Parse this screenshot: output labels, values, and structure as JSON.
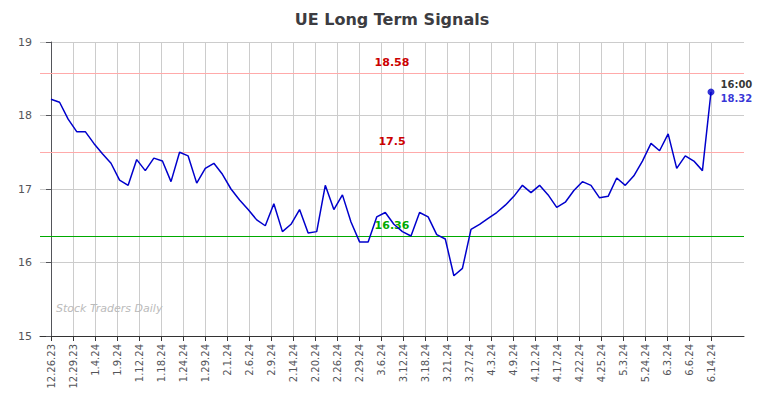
{
  "chart_data": {
    "type": "line",
    "title": "UE Long Term Signals",
    "x": [
      0,
      0.38961,
      0.779221,
      1.168831,
      1.558442,
      1.948052,
      2.337662,
      2.727273,
      3.116883,
      3.506494,
      3.896104,
      4.285714,
      4.675325,
      5.064935,
      5.454545,
      5.844156,
      6.233766,
      6.623377,
      7.012987,
      7.402597,
      7.792208,
      8.181818,
      8.571429,
      8.961039,
      9.350649,
      9.74026,
      10.12987,
      10.519481,
      10.909091,
      11.298701,
      11.688312,
      12.077922,
      12.467532,
      12.857143,
      13.246753,
      13.636364,
      14.025974,
      14.415584,
      14.805195,
      15.194805,
      15.584416,
      15.974026,
      16.363636,
      16.753247,
      17.142857,
      17.532468,
      17.922078,
      18.311688,
      18.701299,
      19.090909,
      19.480519,
      19.87013,
      20.25974,
      20.649351,
      21.038961,
      21.428571,
      21.818182,
      22.207792,
      22.597403,
      22.987013,
      23.376623,
      23.766234,
      24.155844,
      24.545455,
      24.935065,
      25.324675,
      25.714286,
      26.103896,
      26.493506,
      26.883117,
      27.272727,
      27.662338,
      28.051948,
      28.441558,
      28.831169,
      29.220779,
      29.61039,
      30
    ],
    "values": [
      18.22,
      18.18,
      17.95,
      17.78,
      17.78,
      17.62,
      17.48,
      17.35,
      17.12,
      17.05,
      17.4,
      17.25,
      17.42,
      17.38,
      17.1,
      17.5,
      17.45,
      17.08,
      17.28,
      17.35,
      17.2,
      17.0,
      16.85,
      16.72,
      16.58,
      16.5,
      16.8,
      16.42,
      16.52,
      16.72,
      16.4,
      16.42,
      17.05,
      16.72,
      16.92,
      16.55,
      16.28,
      16.28,
      16.62,
      16.68,
      16.52,
      16.42,
      16.36,
      16.68,
      16.62,
      16.38,
      16.32,
      15.82,
      15.92,
      16.45,
      16.52,
      16.6,
      16.68,
      16.78,
      16.9,
      17.05,
      16.95,
      17.05,
      16.92,
      16.75,
      16.82,
      16.98,
      17.1,
      17.05,
      16.88,
      16.9,
      17.15,
      17.05,
      17.18,
      17.38,
      17.62,
      17.52,
      17.75,
      17.28,
      17.45,
      17.38,
      17.25,
      18.32
    ],
    "color": "#0000cc",
    "xlim": [
      -0.5,
      31.5
    ],
    "xticks": [
      {
        "value": 0,
        "label": "12.26.23"
      },
      {
        "value": 1,
        "label": "12.29.23"
      },
      {
        "value": 2,
        "label": "1.4.24"
      },
      {
        "value": 3,
        "label": "1.9.24"
      },
      {
        "value": 4,
        "label": "1.12.24"
      },
      {
        "value": 5,
        "label": "1.18.24"
      },
      {
        "value": 6,
        "label": "1.24.24"
      },
      {
        "value": 7,
        "label": "1.29.24"
      },
      {
        "value": 8,
        "label": "2.1.24"
      },
      {
        "value": 9,
        "label": "2.6.24"
      },
      {
        "value": 10,
        "label": "2.9.24"
      },
      {
        "value": 11,
        "label": "2.14.24"
      },
      {
        "value": 12,
        "label": "2.20.24"
      },
      {
        "value": 13,
        "label": "2.26.24"
      },
      {
        "value": 14,
        "label": "2.29.24"
      },
      {
        "value": 15,
        "label": "3.6.24"
      },
      {
        "value": 16,
        "label": "3.12.24"
      },
      {
        "value": 17,
        "label": "3.18.24"
      },
      {
        "value": 18,
        "label": "3.21.24"
      },
      {
        "value": 19,
        "label": "3.27.24"
      },
      {
        "value": 20,
        "label": "4.3.24"
      },
      {
        "value": 21,
        "label": "4.9.24"
      },
      {
        "value": 22,
        "label": "4.12.24"
      },
      {
        "value": 23,
        "label": "4.17.24"
      },
      {
        "value": 24,
        "label": "4.22.24"
      },
      {
        "value": 25,
        "label": "4.25.24"
      },
      {
        "value": 26,
        "label": "5.3.24"
      },
      {
        "value": 27,
        "label": "5.24.24"
      },
      {
        "value": 28,
        "label": "6.3.24"
      },
      {
        "value": 29,
        "label": "6.6.24"
      },
      {
        "value": 30,
        "label": "6.14.24"
      }
    ],
    "ylim": [
      15,
      19
    ],
    "yticks": [
      15,
      16,
      17,
      18,
      19
    ],
    "grid": true,
    "reference_lines": [
      {
        "value": 18.58,
        "color": "#ffaaaa",
        "label_color": "#cc0000"
      },
      {
        "value": 17.5,
        "color": "#ffaaaa",
        "label_color": "#cc0000"
      },
      {
        "value": 16.36,
        "color": "#00aa00",
        "label_color": "#00aa00"
      }
    ],
    "last_label_time": "16:00",
    "watermark": "Stock Traders Daily"
  }
}
